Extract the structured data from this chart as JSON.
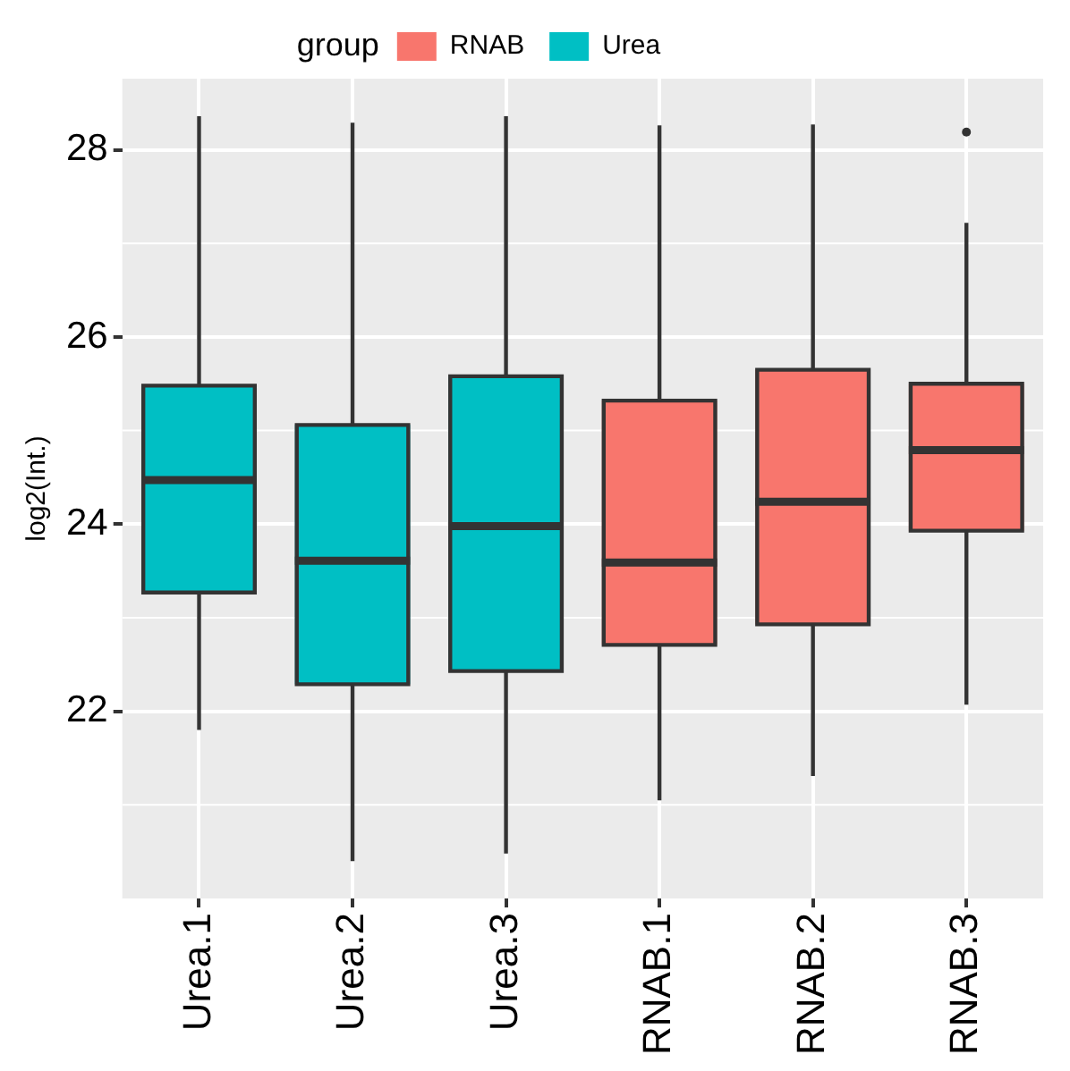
{
  "chart_data": {
    "type": "box",
    "ylabel": "log2(Int.)",
    "legend_title": "group",
    "legend": "top",
    "grid": true,
    "categories": [
      "Urea.1",
      "Urea.2",
      "Urea.3",
      "RNAB.1",
      "RNAB.2",
      "RNAB.3"
    ],
    "ylim": [
      20.0,
      28.76
    ],
    "yticks": [
      22,
      24,
      26,
      28
    ],
    "series": [
      {
        "name": "RNAB",
        "color": "#f8766d",
        "boxes": [
          null,
          null,
          null,
          {
            "low": 21.05,
            "q1": 22.71,
            "median": 23.59,
            "q3": 25.32,
            "high": 28.26
          },
          {
            "low": 21.31,
            "q1": 22.93,
            "median": 24.24,
            "q3": 25.65,
            "high": 28.27
          },
          {
            "low": 22.07,
            "q1": 23.93,
            "median": 24.79,
            "q3": 25.5,
            "high": 27.22,
            "outliers": [
              28.19
            ]
          }
        ]
      },
      {
        "name": "Urea",
        "color": "#00bfc4",
        "boxes": [
          {
            "low": 21.8,
            "q1": 23.27,
            "median": 24.47,
            "q3": 25.48,
            "high": 28.36
          },
          {
            "low": 20.4,
            "q1": 22.29,
            "median": 23.61,
            "q3": 25.06,
            "high": 28.29
          },
          {
            "low": 20.48,
            "q1": 22.43,
            "median": 23.98,
            "q3": 25.58,
            "high": 28.36
          },
          null,
          null,
          null
        ]
      }
    ]
  }
}
